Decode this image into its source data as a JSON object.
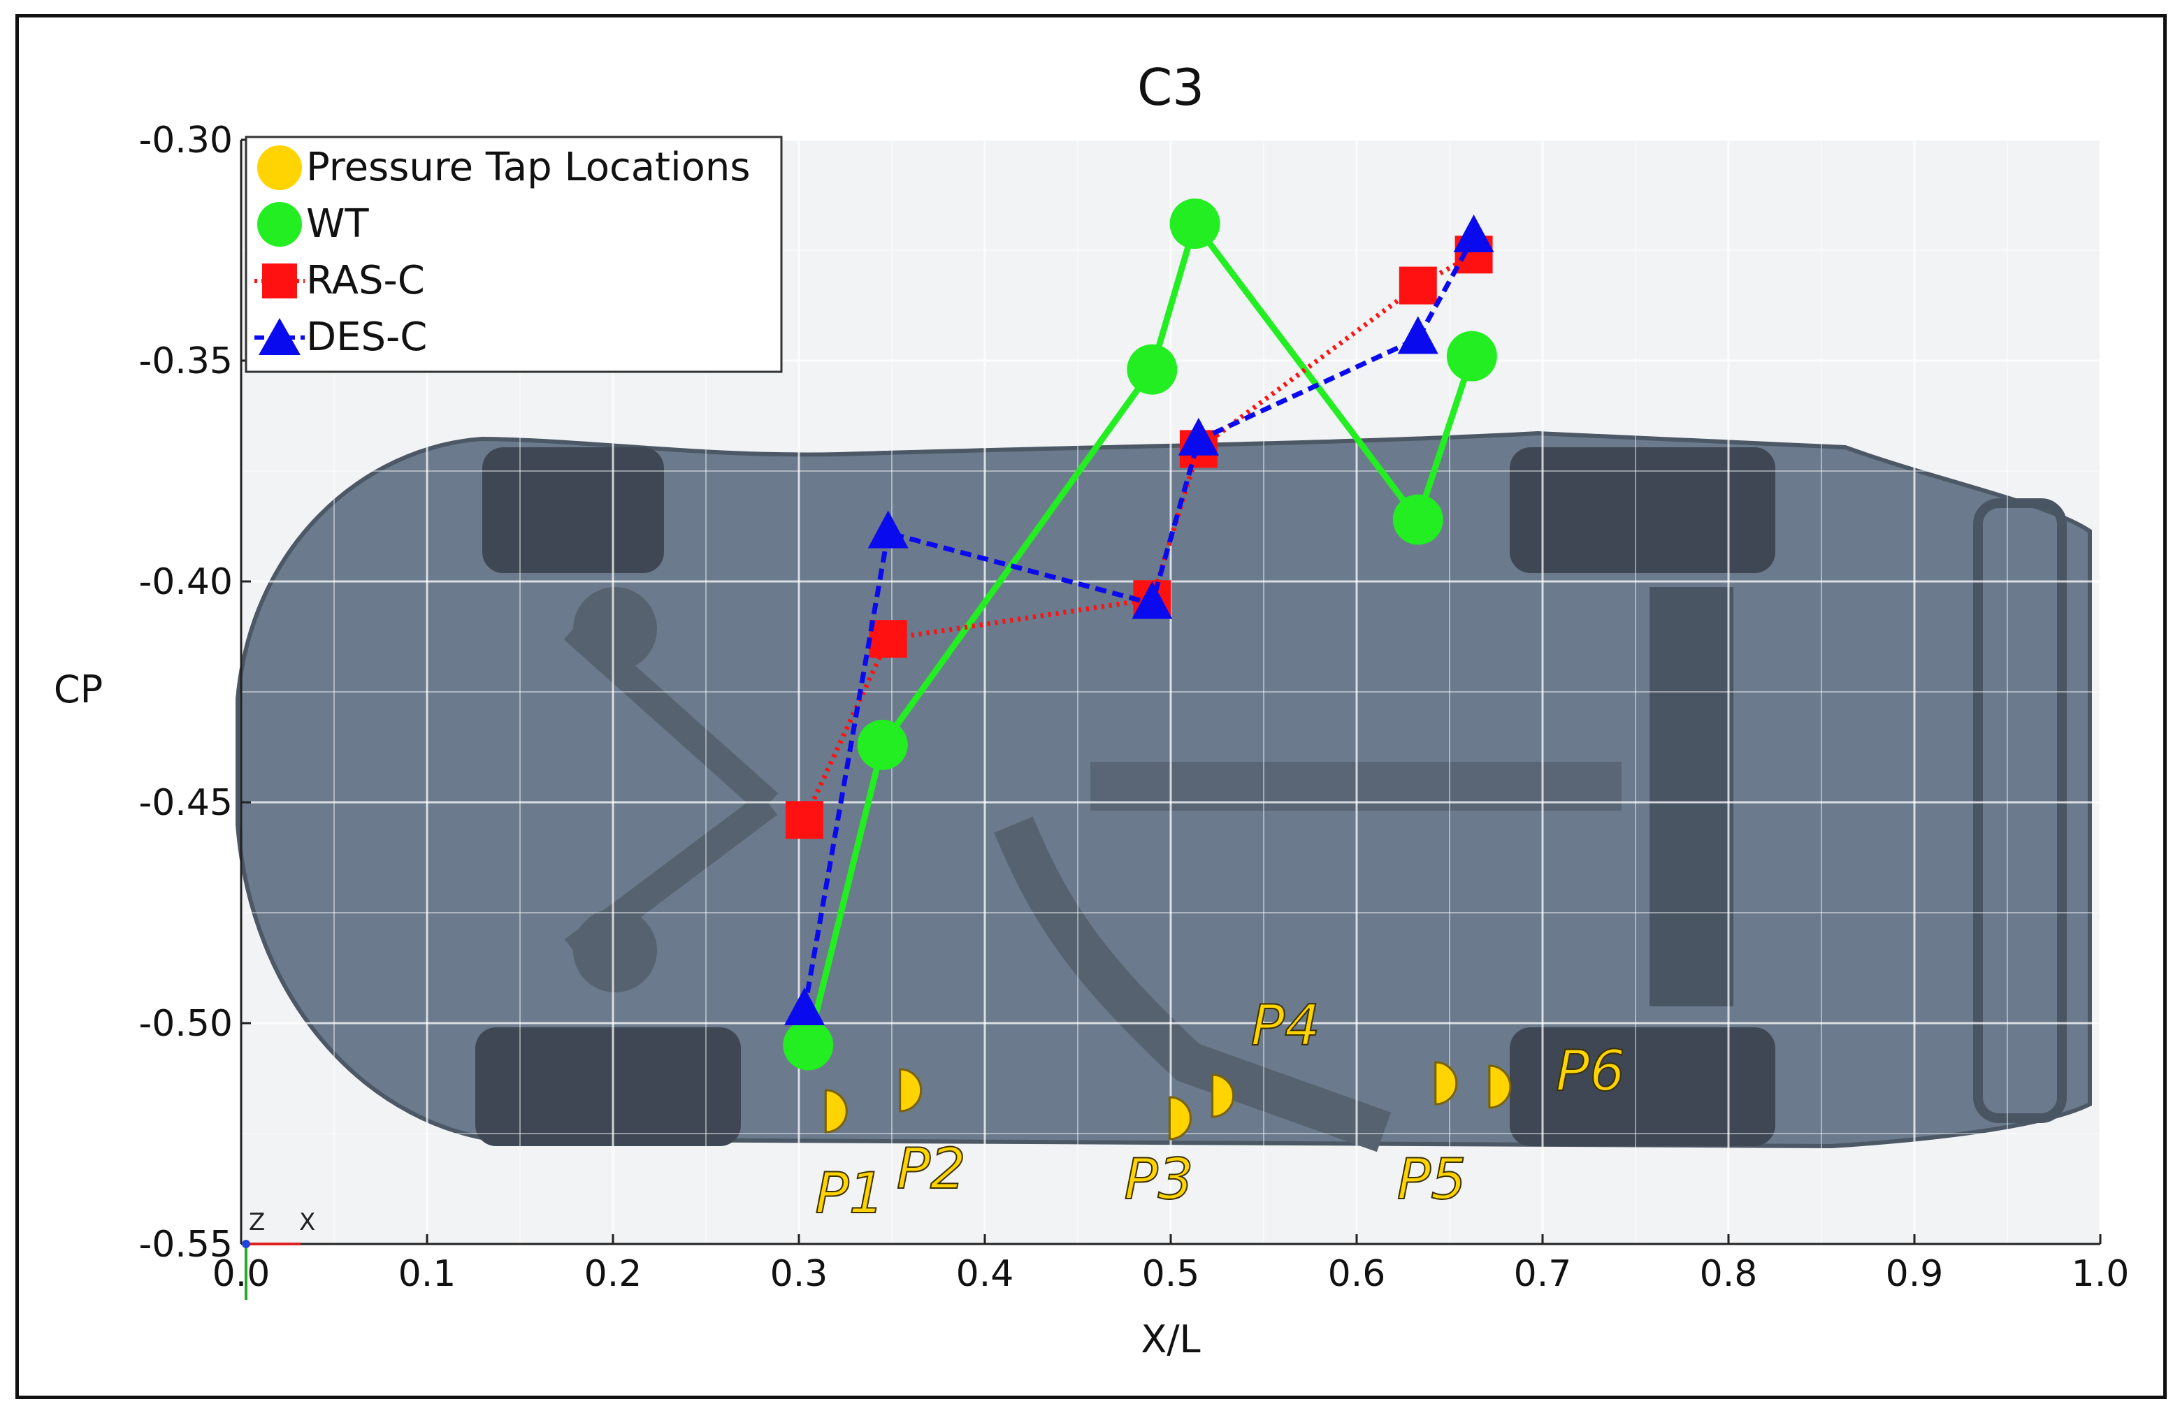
{
  "colors": {
    "wt": "#22ee22",
    "ras": "#ff1111",
    "des": "#0a0aee",
    "tap": "#ffd400",
    "car_body": "#6b7a8c",
    "grid": "#ffffff"
  },
  "chart_data": {
    "type": "line",
    "title": "C3",
    "xlabel": "X/L",
    "ylabel": "CP",
    "xlim": [
      0.0,
      1.0
    ],
    "ylim": [
      -0.55,
      -0.3
    ],
    "grid": true,
    "legend_position": "top-left",
    "x_ticks": [
      "0.0",
      "0.1",
      "0.2",
      "0.3",
      "0.4",
      "0.5",
      "0.6",
      "0.7",
      "0.8",
      "0.9",
      "1.0"
    ],
    "y_ticks": [
      "-0.30",
      "-0.35",
      "-0.40",
      "-0.45",
      "-0.50",
      "-0.55"
    ],
    "legend": [
      "Pressure Tap Locations",
      "WT",
      "RAS-C",
      "DES-C"
    ],
    "series": [
      {
        "name": "WT",
        "marker": "circle",
        "line": "solid",
        "points": [
          [
            0.305,
            -0.505
          ],
          [
            0.345,
            -0.437
          ],
          [
            0.49,
            -0.352
          ],
          [
            0.513,
            -0.319
          ],
          [
            0.633,
            -0.386
          ],
          [
            0.662,
            -0.349
          ]
        ]
      },
      {
        "name": "RAS-C",
        "marker": "square",
        "line": "dotted",
        "points": [
          [
            0.303,
            -0.454
          ],
          [
            0.348,
            -0.413
          ],
          [
            0.49,
            -0.404
          ],
          [
            0.515,
            -0.37
          ],
          [
            0.633,
            -0.333
          ],
          [
            0.663,
            -0.326
          ]
        ]
      },
      {
        "name": "DES-C",
        "marker": "triangle",
        "line": "dashed",
        "points": [
          [
            0.303,
            -0.497
          ],
          [
            0.348,
            -0.389
          ],
          [
            0.49,
            -0.405
          ],
          [
            0.515,
            -0.368
          ],
          [
            0.633,
            -0.345
          ],
          [
            0.663,
            -0.322
          ]
        ]
      }
    ],
    "pressure_taps": [
      {
        "label": "P1",
        "x": 0.305
      },
      {
        "label": "P2",
        "x": 0.345
      },
      {
        "label": "P3",
        "x": 0.49
      },
      {
        "label": "P4",
        "x": 0.513
      },
      {
        "label": "P5",
        "x": 0.633
      },
      {
        "label": "P6",
        "x": 0.662
      }
    ],
    "triad_labels": [
      "Z",
      "X"
    ]
  }
}
